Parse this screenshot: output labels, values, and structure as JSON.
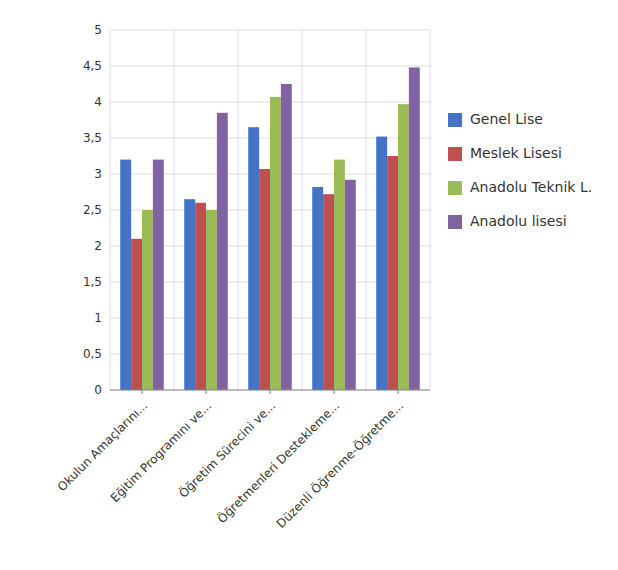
{
  "chart_data": {
    "type": "bar",
    "categories": [
      "Okulun Amaçlarını...",
      "Eğitim Programını ve...",
      "Öğretim Sürecini ve...",
      "Öğretmenleri Destekleme...",
      "Düzenli Öğrenme-Öğretme..."
    ],
    "series": [
      {
        "name": "Genel Lise",
        "color": "#4472C4",
        "values": [
          3.2,
          2.65,
          3.65,
          2.82,
          3.52
        ]
      },
      {
        "name": "Meslek Lisesi",
        "color": "#C0504D",
        "values": [
          2.1,
          2.6,
          3.07,
          2.72,
          3.25
        ]
      },
      {
        "name": "Anadolu Teknik L.",
        "color": "#9BBB59",
        "values": [
          2.5,
          2.5,
          4.07,
          3.2,
          3.97
        ]
      },
      {
        "name": "Anadolu lisesi",
        "color": "#8064A2",
        "values": [
          3.2,
          3.85,
          4.25,
          2.92,
          4.48
        ]
      }
    ],
    "ylim": [
      0,
      5
    ],
    "yticks": [
      0,
      {
        "value": 0.5,
        "label": "0,5"
      },
      1,
      {
        "value": 1.5,
        "label": "1,5"
      },
      2,
      {
        "value": 2.5,
        "label": "2,5"
      },
      3,
      {
        "value": 3.5,
        "label": "3,5"
      },
      4,
      {
        "value": 4.5,
        "label": "4,5"
      },
      5
    ],
    "grid": true,
    "legend": "right"
  }
}
